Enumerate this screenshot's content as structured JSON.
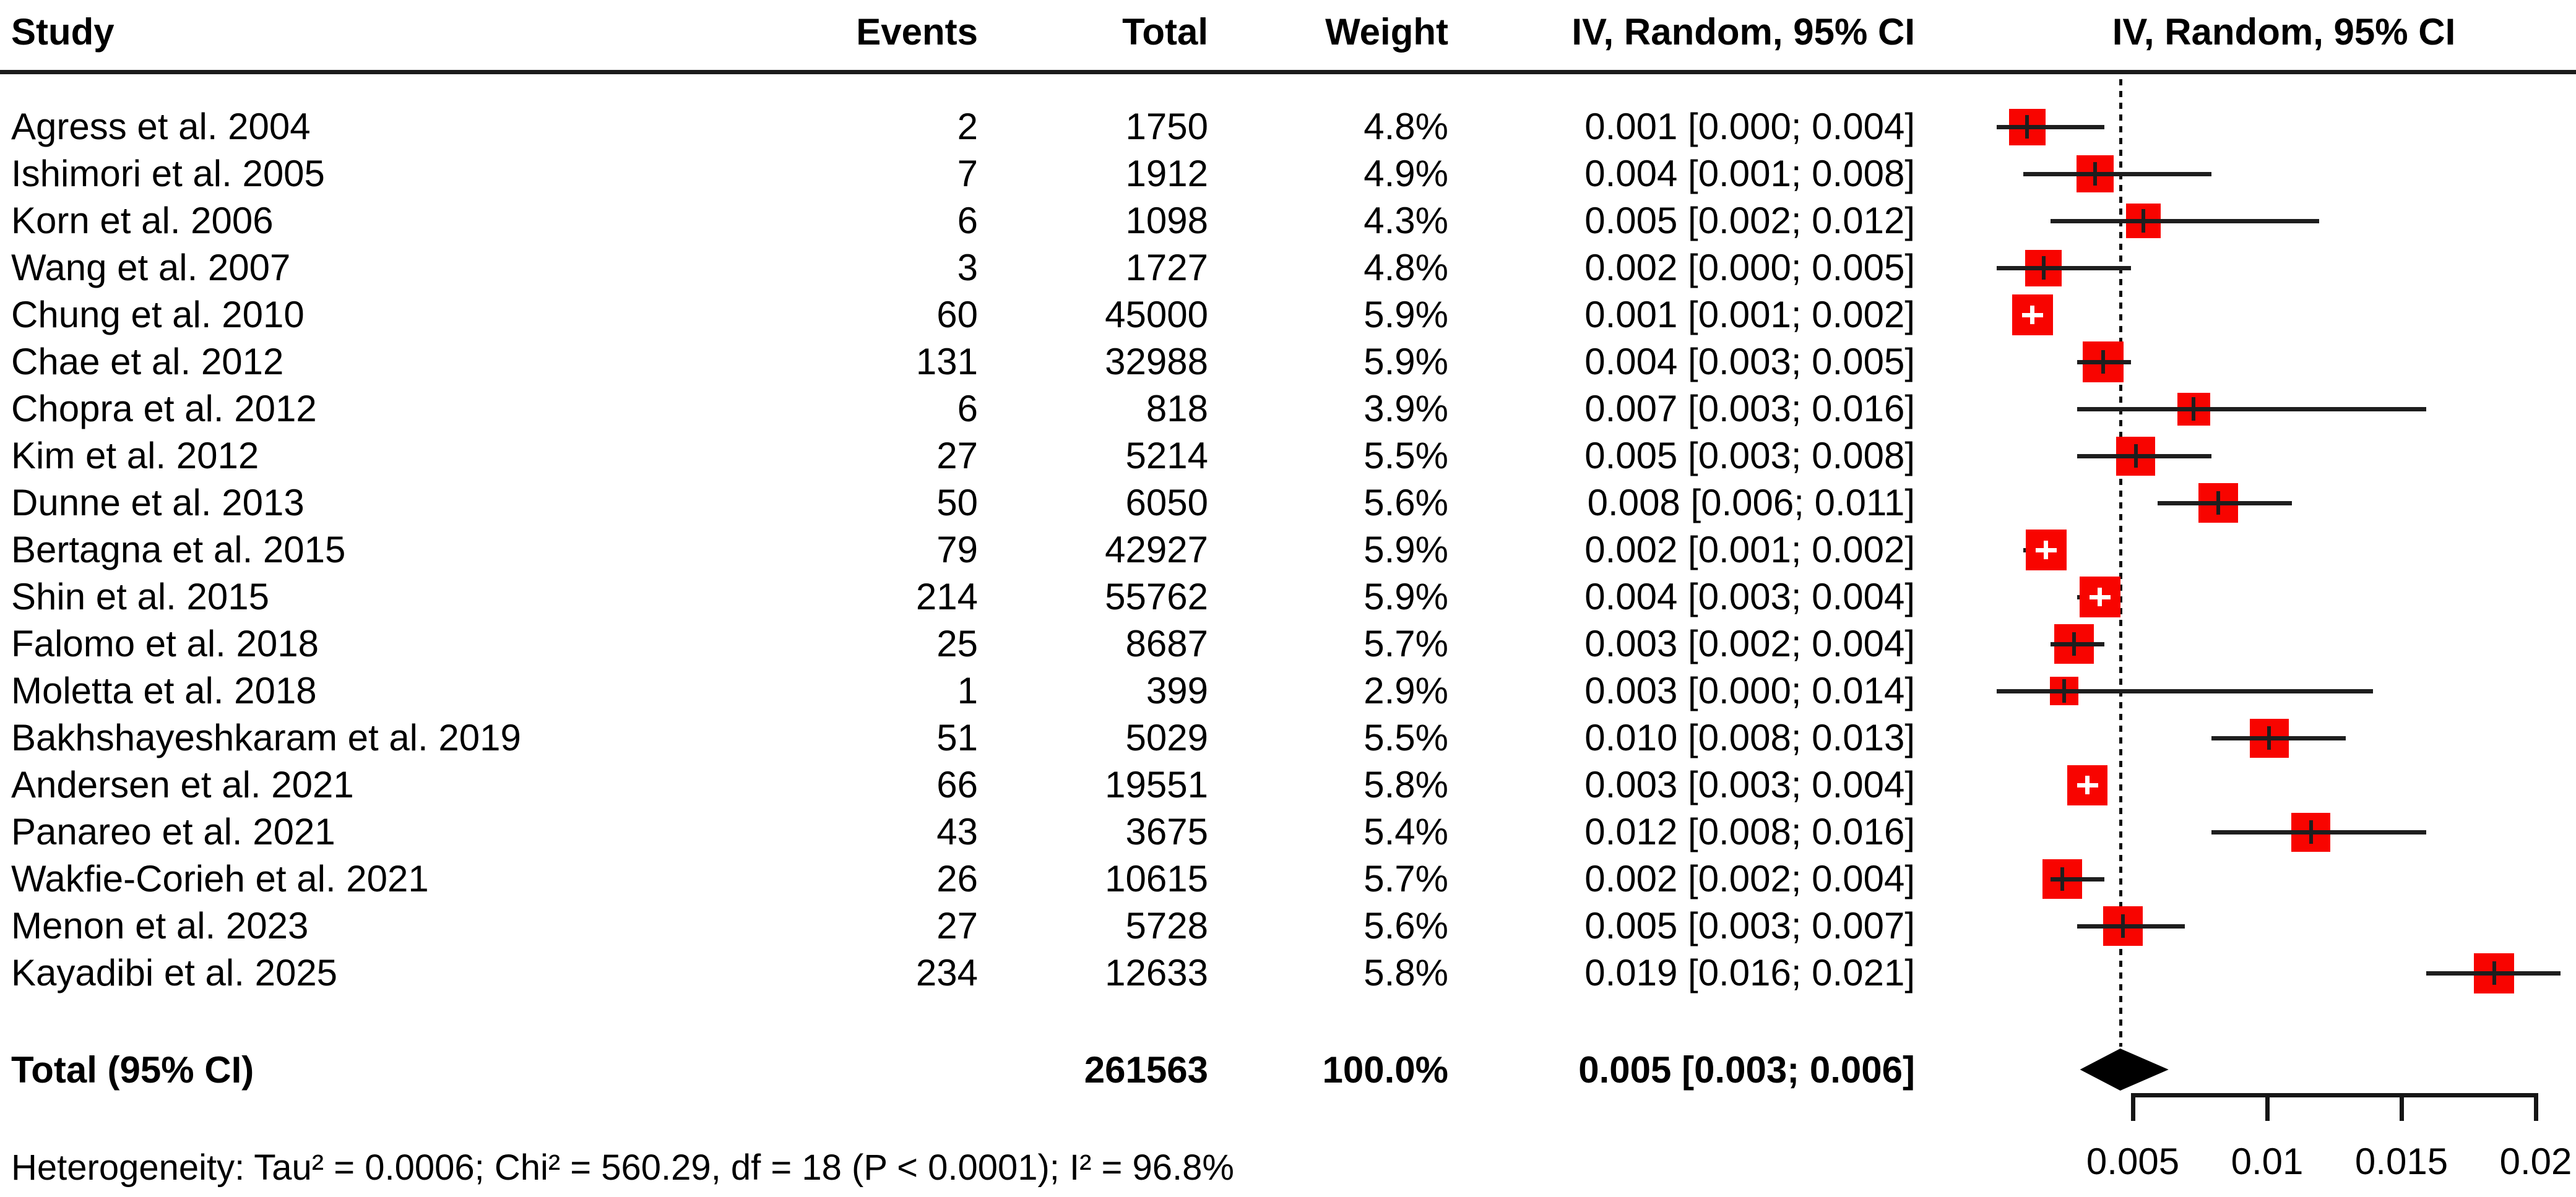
{
  "header": {
    "study": "Study",
    "events": "Events",
    "total": "Total",
    "weight": "Weight",
    "ci": "IV, Random, 95% CI",
    "plot": "IV, Random, 95% CI"
  },
  "total_row": {
    "label": "Total (95% CI)",
    "total": "261563",
    "weight": "100.0%",
    "ci": "0.005 [0.003; 0.006]"
  },
  "heterogeneity": "Heterogeneity: Tau² = 0.0006; Chi² = 560.29, df = 18 (P < 0.0001); I² = 96.8%",
  "colors": {
    "square": "#f80400",
    "line": "#1e1e1e",
    "diamond": "#000000",
    "text": "#000000"
  },
  "chart_data": {
    "type": "scatter",
    "subtype": "forest-plot",
    "title": "",
    "xlabel": "",
    "ylabel": "",
    "xlim": [
      0,
      0.0216
    ],
    "x_ticks": [
      {
        "label": "0.005",
        "value": 0.005
      },
      {
        "label": "0.01",
        "value": 0.01
      },
      {
        "label": "0.015",
        "value": 0.015
      },
      {
        "label": "0.02",
        "value": 0.02
      }
    ],
    "effect_measure": "IV, Random, 95% CI",
    "studies": [
      {
        "study": "Agress et al. 2004",
        "events": "2",
        "total": "1750",
        "weight": "4.8%",
        "weight_pct": 4.8,
        "ci_text": "0.001 [0.000; 0.004]",
        "estimate": 0.00114,
        "ci_low": 0.0,
        "ci_high": 0.004
      },
      {
        "study": "Ishimori et al. 2005",
        "events": "7",
        "total": "1912",
        "weight": "4.9%",
        "weight_pct": 4.9,
        "ci_text": "0.004 [0.001; 0.008]",
        "estimate": 0.00366,
        "ci_low": 0.001,
        "ci_high": 0.008
      },
      {
        "study": "Korn et al. 2006",
        "events": "6",
        "total": "1098",
        "weight": "4.3%",
        "weight_pct": 4.3,
        "ci_text": "0.005 [0.002; 0.012]",
        "estimate": 0.00546,
        "ci_low": 0.002,
        "ci_high": 0.012
      },
      {
        "study": "Wang et al. 2007",
        "events": "3",
        "total": "1727",
        "weight": "4.8%",
        "weight_pct": 4.8,
        "ci_text": "0.002 [0.000; 0.005]",
        "estimate": 0.00174,
        "ci_low": 0.0,
        "ci_high": 0.005
      },
      {
        "study": "Chung et al. 2010",
        "events": "60",
        "total": "45000",
        "weight": "5.9%",
        "weight_pct": 5.9,
        "ci_text": "0.001 [0.001; 0.002]",
        "estimate": 0.00133,
        "ci_low": 0.001,
        "ci_high": 0.002
      },
      {
        "study": "Chae et al. 2012",
        "events": "131",
        "total": "32988",
        "weight": "5.9%",
        "weight_pct": 5.9,
        "ci_text": "0.004 [0.003; 0.005]",
        "estimate": 0.00397,
        "ci_low": 0.003,
        "ci_high": 0.005
      },
      {
        "study": "Chopra et al. 2012",
        "events": "6",
        "total": "818",
        "weight": "3.9%",
        "weight_pct": 3.9,
        "ci_text": "0.007 [0.003; 0.016]",
        "estimate": 0.00733,
        "ci_low": 0.003,
        "ci_high": 0.016
      },
      {
        "study": "Kim et al. 2012",
        "events": "27",
        "total": "5214",
        "weight": "5.5%",
        "weight_pct": 5.5,
        "ci_text": "0.005 [0.003; 0.008]",
        "estimate": 0.00518,
        "ci_low": 0.003,
        "ci_high": 0.008
      },
      {
        "study": "Dunne et al. 2013",
        "events": "50",
        "total": "6050",
        "weight": "5.6%",
        "weight_pct": 5.6,
        "ci_text": "0.008 [0.006; 0.011]",
        "estimate": 0.00826,
        "ci_low": 0.006,
        "ci_high": 0.011
      },
      {
        "study": "Bertagna et al. 2015",
        "events": "79",
        "total": "42927",
        "weight": "5.9%",
        "weight_pct": 5.9,
        "ci_text": "0.002 [0.001; 0.002]",
        "estimate": 0.00184,
        "ci_low": 0.001,
        "ci_high": 0.002
      },
      {
        "study": "Shin et al. 2015",
        "events": "214",
        "total": "55762",
        "weight": "5.9%",
        "weight_pct": 5.9,
        "ci_text": "0.004 [0.003; 0.004]",
        "estimate": 0.00384,
        "ci_low": 0.003,
        "ci_high": 0.004
      },
      {
        "study": "Falomo et al. 2018",
        "events": "25",
        "total": "8687",
        "weight": "5.7%",
        "weight_pct": 5.7,
        "ci_text": "0.003 [0.002; 0.004]",
        "estimate": 0.00288,
        "ci_low": 0.002,
        "ci_high": 0.004
      },
      {
        "study": "Moletta et al. 2018",
        "events": "1",
        "total": "399",
        "weight": "2.9%",
        "weight_pct": 2.9,
        "ci_text": "0.003 [0.000; 0.014]",
        "estimate": 0.00251,
        "ci_low": 0.0,
        "ci_high": 0.014
      },
      {
        "study": "Bakhshayeshkaram et al. 2019",
        "events": "51",
        "total": "5029",
        "weight": "5.5%",
        "weight_pct": 5.5,
        "ci_text": "0.010 [0.008; 0.013]",
        "estimate": 0.01014,
        "ci_low": 0.008,
        "ci_high": 0.013
      },
      {
        "study": "Andersen et al. 2021",
        "events": "66",
        "total": "19551",
        "weight": "5.8%",
        "weight_pct": 5.8,
        "ci_text": "0.003 [0.003; 0.004]",
        "estimate": 0.00338,
        "ci_low": 0.003,
        "ci_high": 0.004
      },
      {
        "study": "Panareo et al. 2021",
        "events": "43",
        "total": "3675",
        "weight": "5.4%",
        "weight_pct": 5.4,
        "ci_text": "0.012 [0.008; 0.016]",
        "estimate": 0.0117,
        "ci_low": 0.008,
        "ci_high": 0.016
      },
      {
        "study": "Wakfie-Corieh et al. 2021",
        "events": "26",
        "total": "10615",
        "weight": "5.7%",
        "weight_pct": 5.7,
        "ci_text": "0.002 [0.002; 0.004]",
        "estimate": 0.00245,
        "ci_low": 0.002,
        "ci_high": 0.004
      },
      {
        "study": "Menon et al. 2023",
        "events": "27",
        "total": "5728",
        "weight": "5.6%",
        "weight_pct": 5.6,
        "ci_text": "0.005 [0.003; 0.007]",
        "estimate": 0.00471,
        "ci_low": 0.003,
        "ci_high": 0.007
      },
      {
        "study": "Kayadibi et al. 2025",
        "events": "234",
        "total": "12633",
        "weight": "5.8%",
        "weight_pct": 5.8,
        "ci_text": "0.019 [0.016; 0.021]",
        "estimate": 0.01852,
        "ci_low": 0.016,
        "ci_high": 0.021
      }
    ],
    "pooled": {
      "label": "Total (95% CI)",
      "total": 261563,
      "weight_pct": 100.0,
      "ci_text": "0.005 [0.003; 0.006]",
      "estimate": 0.0046,
      "ci_low": 0.0031,
      "ci_high": 0.0064
    },
    "reference_line_value": 0.0046,
    "annotations": [
      "Heterogeneity: Tau² = 0.0006; Chi² = 560.29, df = 18 (P < 0.0001); I² = 96.8%"
    ],
    "legend": false,
    "grid": false
  }
}
